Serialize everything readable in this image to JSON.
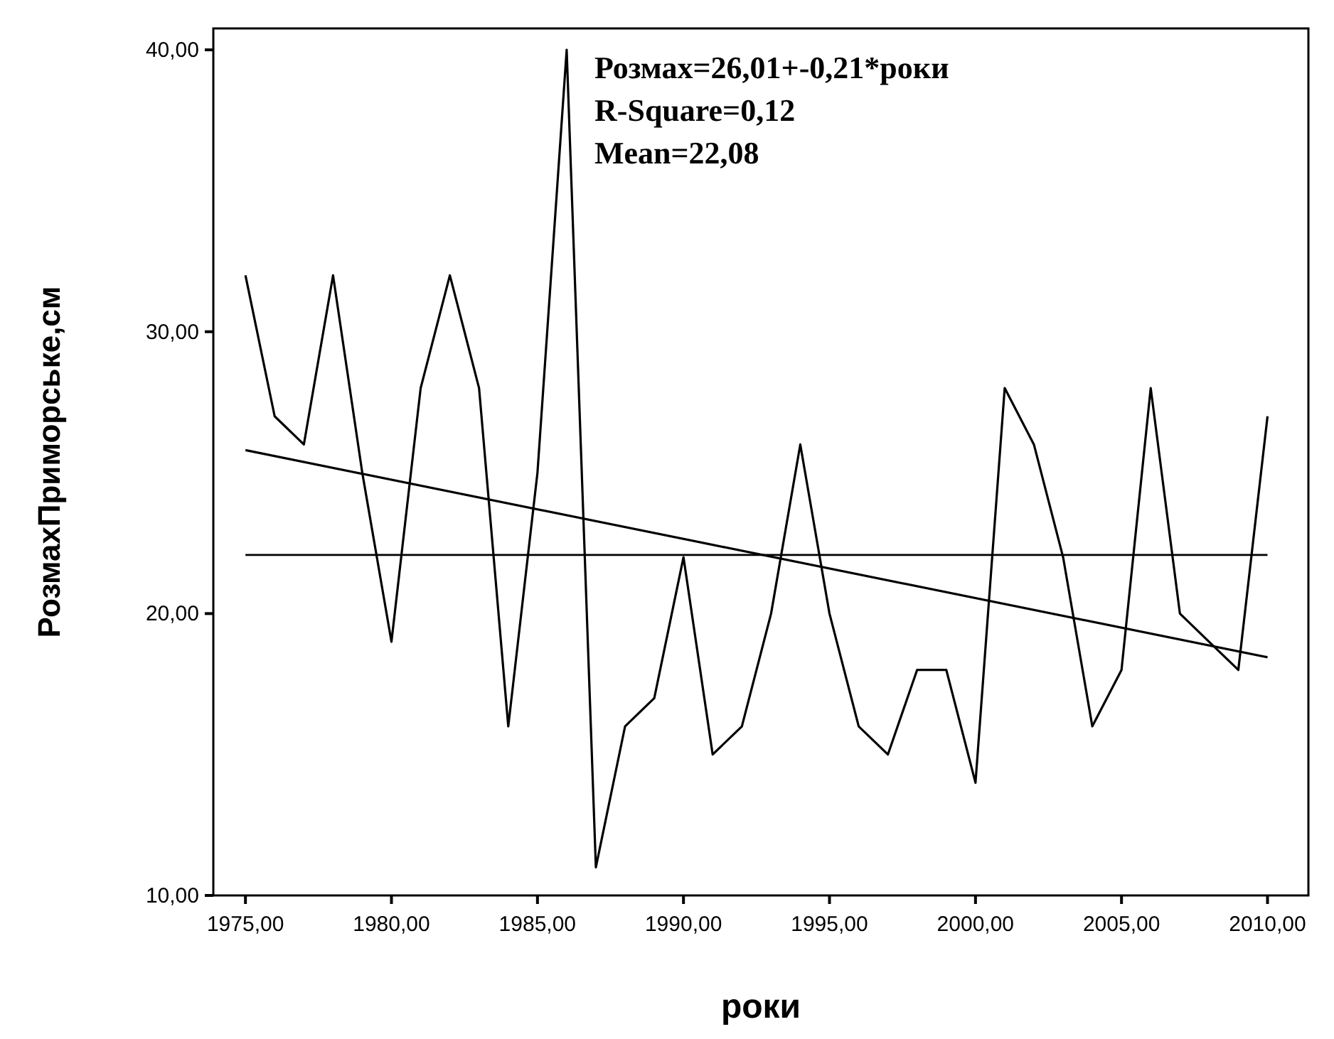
{
  "chart_data": {
    "type": "line",
    "xlabel": "роки",
    "ylabel": "РозмахПриморське,см",
    "annotations": [
      "Розмах=26,01+-0,21*роки",
      "R-Square=0,12",
      "Mean=22,08"
    ],
    "x": [
      1975,
      1976,
      1977,
      1978,
      1979,
      1980,
      1981,
      1982,
      1983,
      1984,
      1985,
      1986,
      1987,
      1988,
      1989,
      1990,
      1991,
      1992,
      1993,
      1994,
      1995,
      1996,
      1997,
      1998,
      1999,
      2000,
      2001,
      2002,
      2003,
      2004,
      2005,
      2006,
      2007,
      2008,
      2009,
      2010
    ],
    "series": [
      {
        "color": "#000000",
        "values": [
          32,
          27,
          26,
          32,
          25,
          19,
          28,
          32,
          28,
          16,
          25,
          40,
          11,
          16,
          17,
          22,
          15,
          16,
          20,
          26,
          20,
          16,
          15,
          18,
          18,
          14,
          28,
          26,
          22,
          16,
          18,
          28,
          20,
          19,
          18,
          27
        ]
      },
      {
        "type": "line",
        "color": "#000000",
        "x": [
          1975,
          2010
        ],
        "values": [
          25.8,
          18.45
        ]
      }
    ],
    "ref_lines": [
      {
        "axis": "y",
        "value": 22.08,
        "color": "#000000"
      }
    ],
    "xlim": [
      1973.9,
      2011.4
    ],
    "ylim": [
      10,
      40.76
    ],
    "xticks": [
      {
        "value": 1975,
        "label": "1975,00"
      },
      {
        "value": 1980,
        "label": "1980,00"
      },
      {
        "value": 1985,
        "label": "1985,00"
      },
      {
        "value": 1990,
        "label": "1990,00"
      },
      {
        "value": 1995,
        "label": "1995,00"
      },
      {
        "value": 2000,
        "label": "2000,00"
      },
      {
        "value": 2005,
        "label": "2005,00"
      },
      {
        "value": 2010,
        "label": "2010,00"
      }
    ],
    "yticks": [
      {
        "value": 10,
        "label": "10,00"
      },
      {
        "value": 20,
        "label": "20,00"
      },
      {
        "value": 30,
        "label": "30,00"
      },
      {
        "value": 40,
        "label": "40,00"
      }
    ],
    "grid": false,
    "marker": "none",
    "line_style": "solid"
  }
}
